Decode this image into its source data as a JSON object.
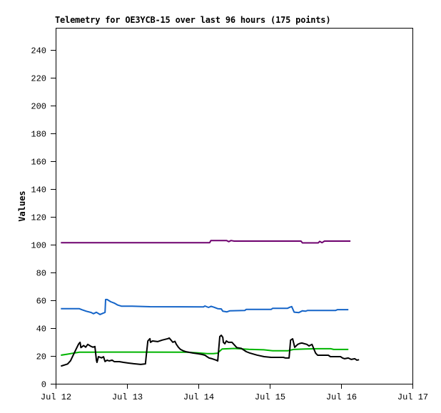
{
  "title": "Telemetry for OE3YCB-15 over last 96 hours (175 points)",
  "y_axis_label": "Values",
  "background_color": "#ffffff",
  "chart_data": {
    "type": "line",
    "title": "Telemetry for OE3YCB-15 over last 96 hours (175 points)",
    "xlabel": "",
    "ylabel": "Values",
    "grid": false,
    "legend": "none",
    "axis_color": "#000000",
    "x_unit": "hours after Jul 12 00:00",
    "xlim": [
      0,
      120
    ],
    "ylim": [
      0,
      256
    ],
    "x_ticks": [
      {
        "hours": 0,
        "label": "Jul 12"
      },
      {
        "hours": 24,
        "label": "Jul 13"
      },
      {
        "hours": 48,
        "label": "Jul 14"
      },
      {
        "hours": 72,
        "label": "Jul 15"
      },
      {
        "hours": 96,
        "label": "Jul 16"
      },
      {
        "hours": 120,
        "label": "Jul 17"
      }
    ],
    "y_ticks": [
      0,
      20,
      40,
      60,
      80,
      100,
      120,
      140,
      160,
      180,
      200,
      220,
      240
    ],
    "series": [
      {
        "name": "purple",
        "color": "#6e006e",
        "points": [
          [
            2,
            101.5
          ],
          [
            51.8,
            101.5
          ],
          [
            52.2,
            103
          ],
          [
            57.5,
            103
          ],
          [
            58.2,
            102.2
          ],
          [
            59,
            103
          ],
          [
            60,
            102.6
          ],
          [
            82.5,
            102.6
          ],
          [
            83,
            101.3
          ],
          [
            88.3,
            101.3
          ],
          [
            88.8,
            102.4
          ],
          [
            89.6,
            101.5
          ],
          [
            90.4,
            102.6
          ],
          [
            98.9,
            102.6
          ]
        ]
      },
      {
        "name": "blue",
        "color": "#1464c8",
        "points": [
          [
            2,
            54
          ],
          [
            7.9,
            54
          ],
          [
            8.9,
            53.2
          ],
          [
            10.3,
            52.2
          ],
          [
            12,
            51.2
          ],
          [
            12.7,
            50.4
          ],
          [
            13.7,
            51.4
          ],
          [
            14.9,
            49.8
          ],
          [
            16.1,
            50.9
          ],
          [
            16.6,
            51.3
          ],
          [
            16.8,
            60.6
          ],
          [
            17.3,
            60.6
          ],
          [
            18.5,
            59
          ],
          [
            19.7,
            58
          ],
          [
            20.9,
            56.6
          ],
          [
            22.1,
            55.8
          ],
          [
            25.7,
            55.8
          ],
          [
            31.7,
            55.4
          ],
          [
            49.7,
            55.3
          ],
          [
            50.2,
            55.9
          ],
          [
            51.4,
            54.9
          ],
          [
            52.3,
            55.7
          ],
          [
            53.3,
            55
          ],
          [
            54.5,
            54
          ],
          [
            55.7,
            53.8
          ],
          [
            56.2,
            52.2
          ],
          [
            57.6,
            51.7
          ],
          [
            58.6,
            52.5
          ],
          [
            63.6,
            52.7
          ],
          [
            64.1,
            53.5
          ],
          [
            72.5,
            53.5
          ],
          [
            73,
            54.3
          ],
          [
            78,
            54.3
          ],
          [
            78.7,
            55
          ],
          [
            79.4,
            55.5
          ],
          [
            80.2,
            51.5
          ],
          [
            81.8,
            51.2
          ],
          [
            83,
            52.5
          ],
          [
            84,
            52.2
          ],
          [
            84.7,
            52.7
          ],
          [
            94.1,
            52.7
          ],
          [
            94.8,
            53.3
          ],
          [
            98.2,
            53.3
          ]
        ]
      },
      {
        "name": "green",
        "color": "#00b400",
        "points": [
          [
            2,
            20.6
          ],
          [
            4,
            21.3
          ],
          [
            6.5,
            22.2
          ],
          [
            8,
            22.7
          ],
          [
            17,
            22.8
          ],
          [
            25,
            22.8
          ],
          [
            44,
            22.7
          ],
          [
            48,
            22.2
          ],
          [
            51,
            21.7
          ],
          [
            53,
            21.7
          ],
          [
            54.5,
            22
          ],
          [
            55.2,
            23.5
          ],
          [
            56,
            25
          ],
          [
            60,
            25.4
          ],
          [
            65,
            24.8
          ],
          [
            70,
            24.4
          ],
          [
            73,
            23.7
          ],
          [
            78,
            23.7
          ],
          [
            80,
            24.7
          ],
          [
            84,
            25
          ],
          [
            88,
            25.2
          ],
          [
            92.5,
            25.2
          ],
          [
            93.5,
            24.7
          ],
          [
            98.2,
            24.7
          ]
        ]
      },
      {
        "name": "black",
        "color": "#000000",
        "points": [
          [
            2,
            12.8
          ],
          [
            4,
            14.2
          ],
          [
            5,
            16.5
          ],
          [
            6,
            21
          ],
          [
            7,
            25.5
          ],
          [
            7.7,
            28.5
          ],
          [
            8.2,
            29.8
          ],
          [
            8.5,
            26
          ],
          [
            9.4,
            27.5
          ],
          [
            10.1,
            26.3
          ],
          [
            10.8,
            28.3
          ],
          [
            11.8,
            27
          ],
          [
            12.5,
            26.3
          ],
          [
            13.2,
            26.8
          ],
          [
            13.7,
            17
          ],
          [
            13.9,
            15.4
          ],
          [
            14.4,
            19.5
          ],
          [
            15.4,
            18.6
          ],
          [
            16.1,
            19.4
          ],
          [
            16.6,
            16
          ],
          [
            17.3,
            17
          ],
          [
            18,
            16.4
          ],
          [
            19,
            17
          ],
          [
            19.7,
            15.9
          ],
          [
            21.4,
            15.9
          ],
          [
            22.8,
            15.4
          ],
          [
            24.5,
            14.9
          ],
          [
            26.2,
            14.4
          ],
          [
            28.6,
            13.9
          ],
          [
            30.2,
            14.3
          ],
          [
            30.5,
            21
          ],
          [
            31,
            30.8
          ],
          [
            31.7,
            32.4
          ],
          [
            31.9,
            29.8
          ],
          [
            32.6,
            30.8
          ],
          [
            34.3,
            30.3
          ],
          [
            35.8,
            31.4
          ],
          [
            37.7,
            32.4
          ],
          [
            38.2,
            32.9
          ],
          [
            39.4,
            29.8
          ],
          [
            40.1,
            30.5
          ],
          [
            40.6,
            28.3
          ],
          [
            41.3,
            26.2
          ],
          [
            42,
            24.7
          ],
          [
            43,
            23.6
          ],
          [
            43.7,
            23.1
          ],
          [
            46.1,
            22.1
          ],
          [
            47.8,
            21.6
          ],
          [
            49.2,
            21.1
          ],
          [
            50.2,
            20.5
          ],
          [
            50.9,
            19.5
          ],
          [
            51.6,
            18.5
          ],
          [
            52.6,
            18
          ],
          [
            53.3,
            17.5
          ],
          [
            54,
            17
          ],
          [
            54.5,
            16.4
          ],
          [
            55.2,
            33.9
          ],
          [
            55.7,
            34.9
          ],
          [
            56.2,
            33.4
          ],
          [
            56.4,
            29.8
          ],
          [
            56.9,
            28.8
          ],
          [
            57.4,
            30.8
          ],
          [
            58.1,
            29.8
          ],
          [
            59.3,
            29.8
          ],
          [
            60.5,
            27
          ],
          [
            60.9,
            26
          ],
          [
            62.4,
            25.5
          ],
          [
            64.1,
            23.1
          ],
          [
            65.3,
            22.1
          ],
          [
            67.7,
            20.6
          ],
          [
            70.1,
            19.5
          ],
          [
            72.5,
            19
          ],
          [
            76.6,
            19
          ],
          [
            77.3,
            18.5
          ],
          [
            78.5,
            18.5
          ],
          [
            79,
            31.4
          ],
          [
            79.7,
            32.3
          ],
          [
            80.4,
            26.2
          ],
          [
            81.4,
            28.3
          ],
          [
            82.1,
            29
          ],
          [
            82.8,
            29.3
          ],
          [
            84.5,
            28.3
          ],
          [
            85.2,
            27.2
          ],
          [
            86.2,
            28.3
          ],
          [
            86.9,
            24.7
          ],
          [
            87.4,
            22.1
          ],
          [
            88.1,
            20.5
          ],
          [
            91.7,
            20.5
          ],
          [
            92.4,
            19.5
          ],
          [
            95.8,
            19.5
          ],
          [
            96.5,
            18.5
          ],
          [
            97.2,
            18
          ],
          [
            98.4,
            18.5
          ],
          [
            99.4,
            17.5
          ],
          [
            100.6,
            18
          ],
          [
            101.3,
            17
          ],
          [
            101.8,
            17.2
          ]
        ]
      }
    ]
  }
}
